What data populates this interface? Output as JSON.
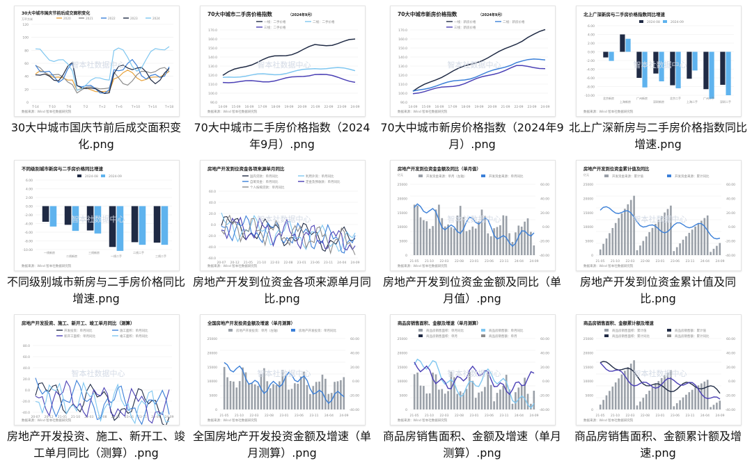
{
  "colors": {
    "navy": "#1f2a44",
    "blue": "#3a7fd8",
    "lightblue": "#7ec6f0",
    "sky": "#5fb3ee",
    "gray": "#8c8c8c",
    "orange": "#e8a23b",
    "purple": "#4a3fb5",
    "bar": "#9aa0a8",
    "black": "#111111",
    "red": "#d13a3a",
    "green": "#7bbf6a"
  },
  "common": {
    "source": "数据来源：Wind  智本社数据研究院",
    "watermark": "智本社数据中心"
  },
  "tiles": [
    {
      "caption": "30大中城市国庆节前后成交面积变化.png",
      "chart_title": "30大中城市国庆节前后成交面积变化",
      "unit": "万平方米",
      "legend": [
        "2020",
        "2021",
        "2022",
        "2023",
        "2024"
      ],
      "icon": "line-chart-icon"
    },
    {
      "caption": "70大中城市二手房价格指数（2024年9月）.png",
      "chart_title": "70大中城市二手房价格指数",
      "chart_subtitle": "（2024年9月）",
      "legend": [
        "一线：二手价格",
        "二线：二手价格",
        "三线：二手价格"
      ],
      "icon": "line-chart-icon"
    },
    {
      "caption": "70大中城市新房价格指数（2024年9月）.png",
      "chart_title": "70大中城市新房价格指数",
      "chart_subtitle": "（2024年9月）",
      "legend": [
        "一线：新房价格",
        "二线：新房价格",
        "三线：新房价格"
      ],
      "icon": "line-chart-icon"
    },
    {
      "caption": "北上广深新房与二手房价格指数同比增速.png",
      "chart_title": "北上广深新房与二手房价格指数同比增速",
      "legend": [
        "2024-08",
        "2024-09"
      ],
      "icon": "bar-chart-icon"
    },
    {
      "caption": "不同级别城市新房与二手房价格同比增速.png",
      "chart_title": "不同级别城市新房与二手房价格同比增速",
      "legend": [
        "2024-08",
        "2024-09"
      ],
      "icon": "bar-chart-icon"
    },
    {
      "caption": "房地产开发到位资金各项来源单月同比.png",
      "chart_title": "房地产开发到位资金各项来源单月同比",
      "legend": [
        "国内贷款：单月同比",
        "利用外资：单月同比",
        "自筹资金：单月同比",
        "定金及预收款：单月同比",
        "个人按揭贷款：单月同比"
      ],
      "icon": "line-chart-icon"
    },
    {
      "caption": "房地产开发到位资金金额及同比（单月值）.png",
      "chart_title": "房地产开发到位资金金额及同比（单月值）",
      "unit": "亿元",
      "legend": [
        "开发资金来源：单月（左轴）",
        "开发资金来源：单月同比"
      ],
      "icon": "combo-chart-icon"
    },
    {
      "caption": "房地产开发到位资金累计值及同比.png",
      "chart_title": "房地产开发到位资金累计值及同比",
      "unit": "亿元",
      "legend": [
        "开发资金来源：累计值",
        "开发资金来源：累计同比"
      ],
      "icon": "combo-chart-icon"
    },
    {
      "caption": "房地产开发投资、施工、新开工、竣工单月同比（测算）.png",
      "chart_title": "房地产开发投资、施工、新开工、竣工单月同比（测算）",
      "legend": [
        "开发投资：单月同比",
        "施工面积：单月同比",
        "新开工面积：单月同比",
        "竣工面积：单月同比"
      ],
      "icon": "line-chart-icon"
    },
    {
      "caption": "全国房地产开发投资金额及增速（单月测算）.png",
      "chart_title": "全国房地产开发投资金额及增速（单月测算）",
      "legend": [
        "房地产开发投资：单月（左轴）",
        "房地产开发投资：单月同比"
      ],
      "icon": "combo-chart-icon"
    },
    {
      "caption": "商品房销售面积、金额及增速（单月测算）.png",
      "chart_title": "商品房销售面积、金额及增速（单月测算）",
      "legend": [
        "商品房销售面积：单月同比",
        "商品房销售额：单月同比",
        "商品房销售面积：单月",
        "商品房销售额：单月"
      ],
      "icon": "combo-chart-icon"
    },
    {
      "caption": "商品房销售面积、金额累计额及增速.png",
      "chart_title": "商品房销售面积、金额累计额及增速",
      "legend": [
        "商品房销售面积：累计值",
        "商品房销售额：累计值",
        "商品房销售面积：累计同比",
        "商品房销售额：累计同比"
      ],
      "icon": "combo-chart-icon"
    }
  ]
}
